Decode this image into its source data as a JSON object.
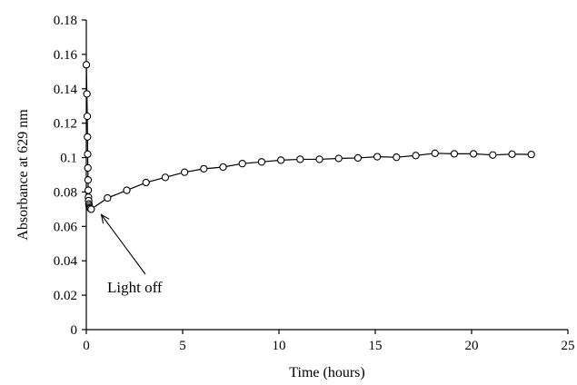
{
  "chart_data": {
    "type": "scatter",
    "title": "",
    "xlabel": "Time (hours)",
    "ylabel": "Absorbance at 629 nm",
    "xlim": [
      0,
      25
    ],
    "ylim": [
      0,
      0.18
    ],
    "xticks": [
      "0",
      "5",
      "10",
      "15",
      "20",
      "25"
    ],
    "yticks": [
      "0",
      "0.02",
      "0.04",
      "0.06",
      "0.08",
      "0.1",
      "0.12",
      "0.14",
      "0.16",
      "0.18"
    ],
    "grid": false,
    "legend": "none",
    "marker": "open-circle",
    "line": "connected",
    "series": [
      {
        "x": [
          0.0,
          0.03,
          0.05,
          0.06,
          0.07,
          0.08,
          0.09,
          0.1,
          0.11,
          0.12,
          0.13,
          0.15,
          0.17,
          0.2,
          0.25,
          1.1,
          2.1,
          3.1,
          4.1,
          5.1,
          6.1,
          7.1,
          8.1,
          9.1,
          10.1,
          11.1,
          12.1,
          13.1,
          14.1,
          15.1,
          16.1,
          17.1,
          18.1,
          19.1,
          20.1,
          21.1,
          22.1,
          23.1
        ],
        "y": [
          0.154,
          0.137,
          0.124,
          0.112,
          0.102,
          0.094,
          0.087,
          0.081,
          0.077,
          0.075,
          0.073,
          0.072,
          0.071,
          0.0705,
          0.07,
          0.0765,
          0.081,
          0.0855,
          0.0885,
          0.0915,
          0.0935,
          0.0945,
          0.0965,
          0.0975,
          0.0985,
          0.099,
          0.099,
          0.0995,
          0.0998,
          0.1005,
          0.1002,
          0.1012,
          0.1025,
          0.1022,
          0.1022,
          0.1015,
          0.102,
          0.1018
        ]
      }
    ],
    "annotations": [
      {
        "text": "Light off",
        "arrow_to": {
          "x": 0.4,
          "y": 0.07
        }
      }
    ]
  }
}
